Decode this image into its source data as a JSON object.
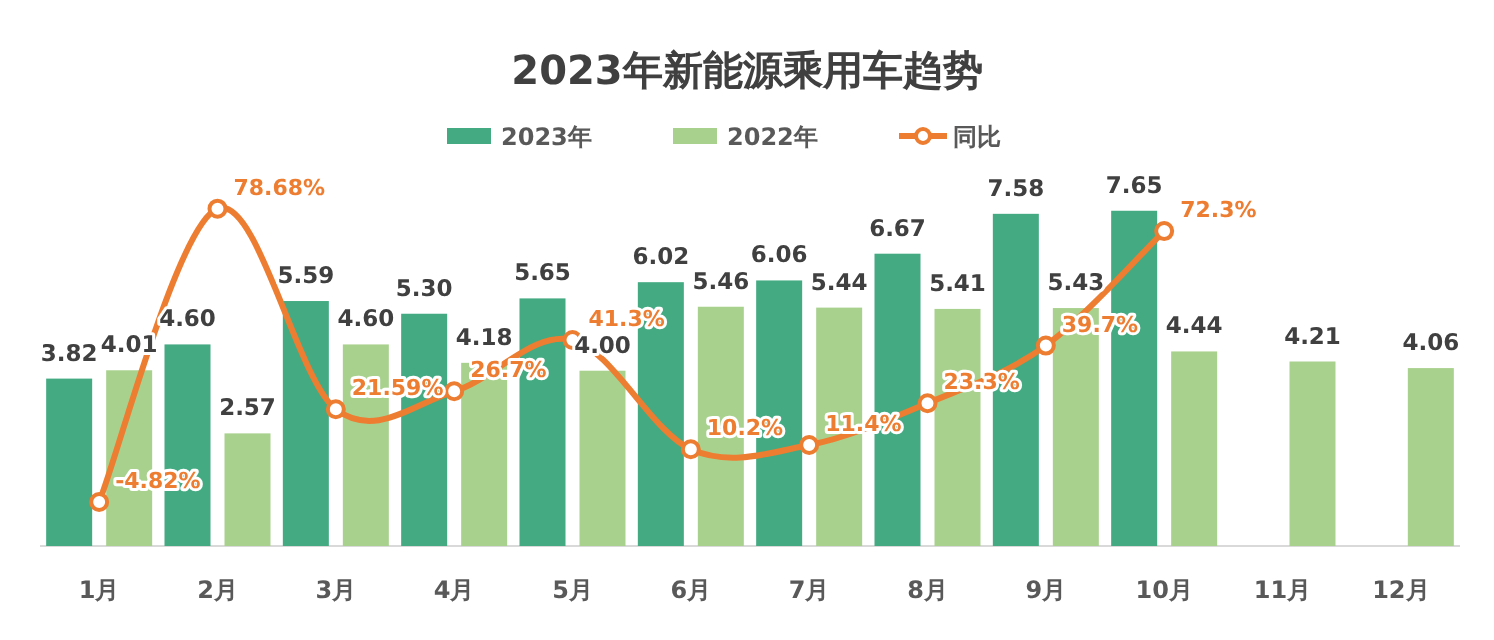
{
  "chart_data": {
    "type": "bar",
    "title": "2023年新能源乘用车趋势",
    "categories": [
      "1月",
      "2月",
      "3月",
      "4月",
      "5月",
      "6月",
      "7月",
      "8月",
      "9月",
      "10月",
      "11月",
      "12月"
    ],
    "series": [
      {
        "name": "2023年",
        "color": "#43aa82",
        "values": [
          3.82,
          4.6,
          5.59,
          5.3,
          5.65,
          6.02,
          6.06,
          6.67,
          7.58,
          7.65,
          null,
          null
        ],
        "value_labels": [
          "3.82",
          "4.60",
          "5.59",
          "5.30",
          "5.65",
          "6.02",
          "6.06",
          "6.67",
          "7.58",
          "7.65",
          null,
          null
        ]
      },
      {
        "name": "2022年",
        "color": "#a9d18e",
        "values": [
          4.01,
          2.57,
          4.6,
          4.18,
          4.0,
          5.46,
          5.44,
          5.41,
          5.43,
          4.44,
          4.21,
          4.06
        ],
        "value_labels": [
          "4.01",
          "2.57",
          "4.60",
          "4.18",
          "4.00",
          "5.46",
          "5.44",
          "5.41",
          "5.43",
          "4.44",
          "4.21",
          "4.06"
        ]
      },
      {
        "name": "同比",
        "type": "line",
        "axis": "y2",
        "color": "#ed7d31",
        "values": [
          -4.82,
          78.68,
          21.59,
          26.7,
          41.3,
          10.2,
          11.4,
          23.3,
          39.7,
          72.3,
          null,
          null
        ],
        "value_labels": [
          "-4.82%",
          "78.68%",
          "21.59%",
          "26.7%",
          "41.3%",
          "10.2%",
          "11.4%",
          "23.3%",
          "39.7%",
          "72.3%",
          null,
          null
        ]
      }
    ],
    "legend": "top",
    "marker": "circle",
    "tick_labels": "x"
  }
}
